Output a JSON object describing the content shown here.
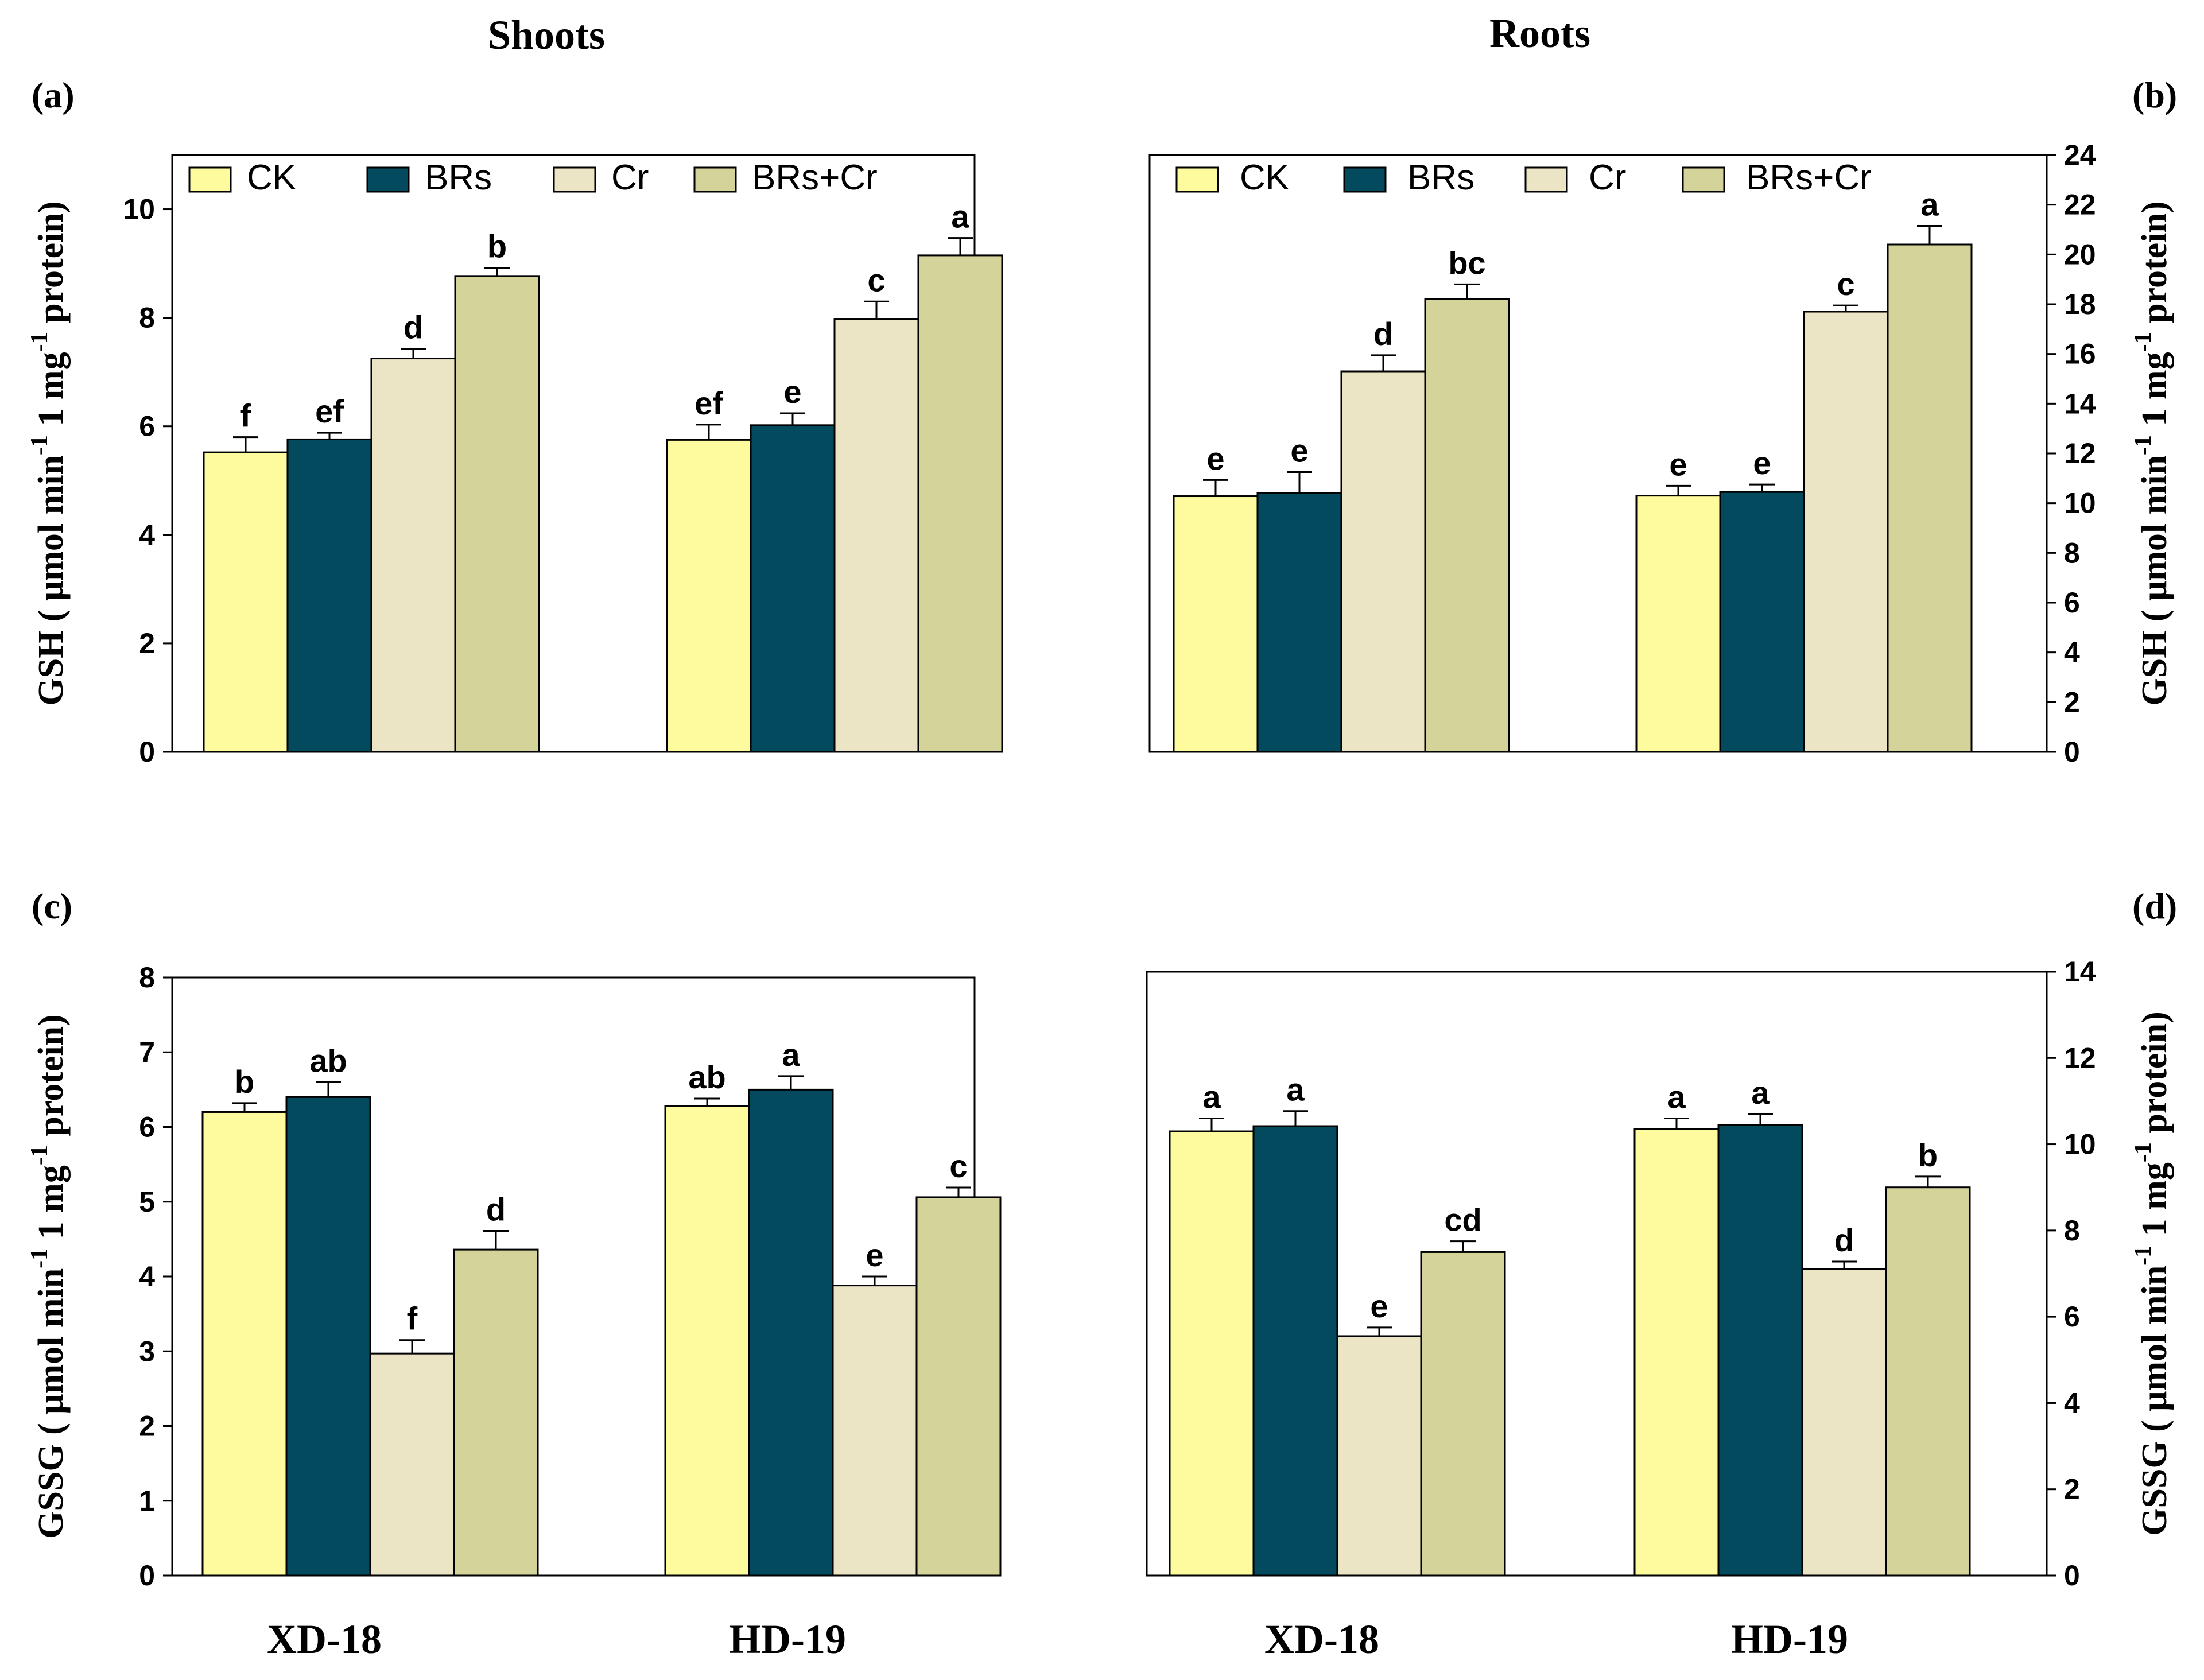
{
  "figure": {
    "column_titles": [
      "Shoots",
      "Roots"
    ],
    "legend_entries": [
      {
        "name": "CK",
        "color": "#fdfb9e"
      },
      {
        "name": "BRs",
        "color": "#034a5f"
      },
      {
        "name": "Cr",
        "color": "#ebe5c5"
      },
      {
        "name": "BRs+Cr",
        "color": "#d4d39a"
      }
    ]
  },
  "chart_data": [
    {
      "panel": "(a)",
      "type": "bar",
      "title": "Shoots",
      "ylabel": "GSH ( μmol min-1 1 mg-1 protein)",
      "ylim": [
        0,
        11
      ],
      "yticks": [
        0,
        2,
        4,
        6,
        8,
        10
      ],
      "y_axis_side": "left",
      "legend": "top",
      "categories": [
        "XD-18",
        "HD-19"
      ],
      "series": [
        {
          "name": "CK",
          "color": "#fdfb9e",
          "values": [
            5.52,
            5.75
          ],
          "errors": [
            0.28,
            0.28
          ],
          "letters": [
            "f",
            "ef"
          ]
        },
        {
          "name": "BRs",
          "color": "#034a5f",
          "values": [
            5.76,
            6.02
          ],
          "errors": [
            0.12,
            0.22
          ],
          "letters": [
            "ef",
            "e"
          ]
        },
        {
          "name": "Cr",
          "color": "#ebe5c5",
          "values": [
            7.25,
            7.98
          ],
          "errors": [
            0.18,
            0.32
          ],
          "letters": [
            "d",
            "c"
          ]
        },
        {
          "name": "BRs+Cr",
          "color": "#d4d39a",
          "values": [
            8.77,
            9.15
          ],
          "errors": [
            0.15,
            0.32
          ],
          "letters": [
            "b",
            "a"
          ]
        }
      ]
    },
    {
      "panel": "(b)",
      "type": "bar",
      "title": "Roots",
      "ylabel": "GSH ( μmol min-1 1 mg-1 protein)",
      "ylim": [
        0,
        24
      ],
      "yticks": [
        0,
        2,
        4,
        6,
        8,
        10,
        12,
        14,
        16,
        18,
        20,
        22,
        24
      ],
      "y_axis_side": "right",
      "legend": "top",
      "categories": [
        "XD-18",
        "HD-19"
      ],
      "series": [
        {
          "name": "CK",
          "color": "#fdfb9e",
          "values": [
            10.28,
            10.3
          ],
          "errors": [
            0.65,
            0.4
          ],
          "letters": [
            "e",
            "e"
          ]
        },
        {
          "name": "BRs",
          "color": "#034a5f",
          "values": [
            10.4,
            10.45
          ],
          "errors": [
            0.85,
            0.3
          ],
          "letters": [
            "e",
            "e"
          ]
        },
        {
          "name": "Cr",
          "color": "#ebe5c5",
          "values": [
            15.3,
            17.7
          ],
          "errors": [
            0.65,
            0.25
          ],
          "letters": [
            "d",
            "c"
          ]
        },
        {
          "name": "BRs+Cr",
          "color": "#d4d39a",
          "values": [
            18.2,
            20.4
          ],
          "errors": [
            0.6,
            0.75
          ],
          "letters": [
            "bc",
            "a"
          ]
        }
      ]
    },
    {
      "panel": "(c)",
      "type": "bar",
      "ylabel": "GSSG ( μmol min-1 1 mg-1 protein)",
      "ylim": [
        0,
        8
      ],
      "yticks": [
        0,
        1,
        2,
        3,
        4,
        5,
        6,
        7,
        8
      ],
      "y_axis_side": "left",
      "categories": [
        "XD-18",
        "HD-19"
      ],
      "series": [
        {
          "name": "CK",
          "color": "#fdfb9e",
          "values": [
            6.2,
            6.28
          ],
          "errors": [
            0.12,
            0.1
          ],
          "letters": [
            "b",
            "ab"
          ]
        },
        {
          "name": "BRs",
          "color": "#034a5f",
          "values": [
            6.4,
            6.5
          ],
          "errors": [
            0.2,
            0.18
          ],
          "letters": [
            "ab",
            "a"
          ]
        },
        {
          "name": "Cr",
          "color": "#ebe5c5",
          "values": [
            2.97,
            3.88
          ],
          "errors": [
            0.18,
            0.12
          ],
          "letters": [
            "f",
            "e"
          ]
        },
        {
          "name": "BRs+Cr",
          "color": "#d4d39a",
          "values": [
            4.36,
            5.06
          ],
          "errors": [
            0.25,
            0.13
          ],
          "letters": [
            "d",
            "c"
          ]
        }
      ]
    },
    {
      "panel": "(d)",
      "type": "bar",
      "ylabel": "GSSG ( μmol min-1 1 mg-1 protein)",
      "ylim": [
        0,
        14
      ],
      "yticks": [
        0,
        2,
        4,
        6,
        8,
        10,
        12,
        14
      ],
      "y_axis_side": "right",
      "categories": [
        "XD-18",
        "HD-19"
      ],
      "series": [
        {
          "name": "CK",
          "color": "#fdfb9e",
          "values": [
            10.3,
            10.35
          ],
          "errors": [
            0.3,
            0.25
          ],
          "letters": [
            "a",
            "a"
          ]
        },
        {
          "name": "BRs",
          "color": "#034a5f",
          "values": [
            10.42,
            10.45
          ],
          "errors": [
            0.35,
            0.25
          ],
          "letters": [
            "a",
            "a"
          ]
        },
        {
          "name": "Cr",
          "color": "#ebe5c5",
          "values": [
            5.55,
            7.1
          ],
          "errors": [
            0.2,
            0.18
          ],
          "letters": [
            "e",
            "d"
          ]
        },
        {
          "name": "BRs+Cr",
          "color": "#d4d39a",
          "values": [
            7.5,
            9.0
          ],
          "errors": [
            0.25,
            0.25
          ],
          "letters": [
            "cd",
            "b"
          ]
        }
      ]
    }
  ]
}
